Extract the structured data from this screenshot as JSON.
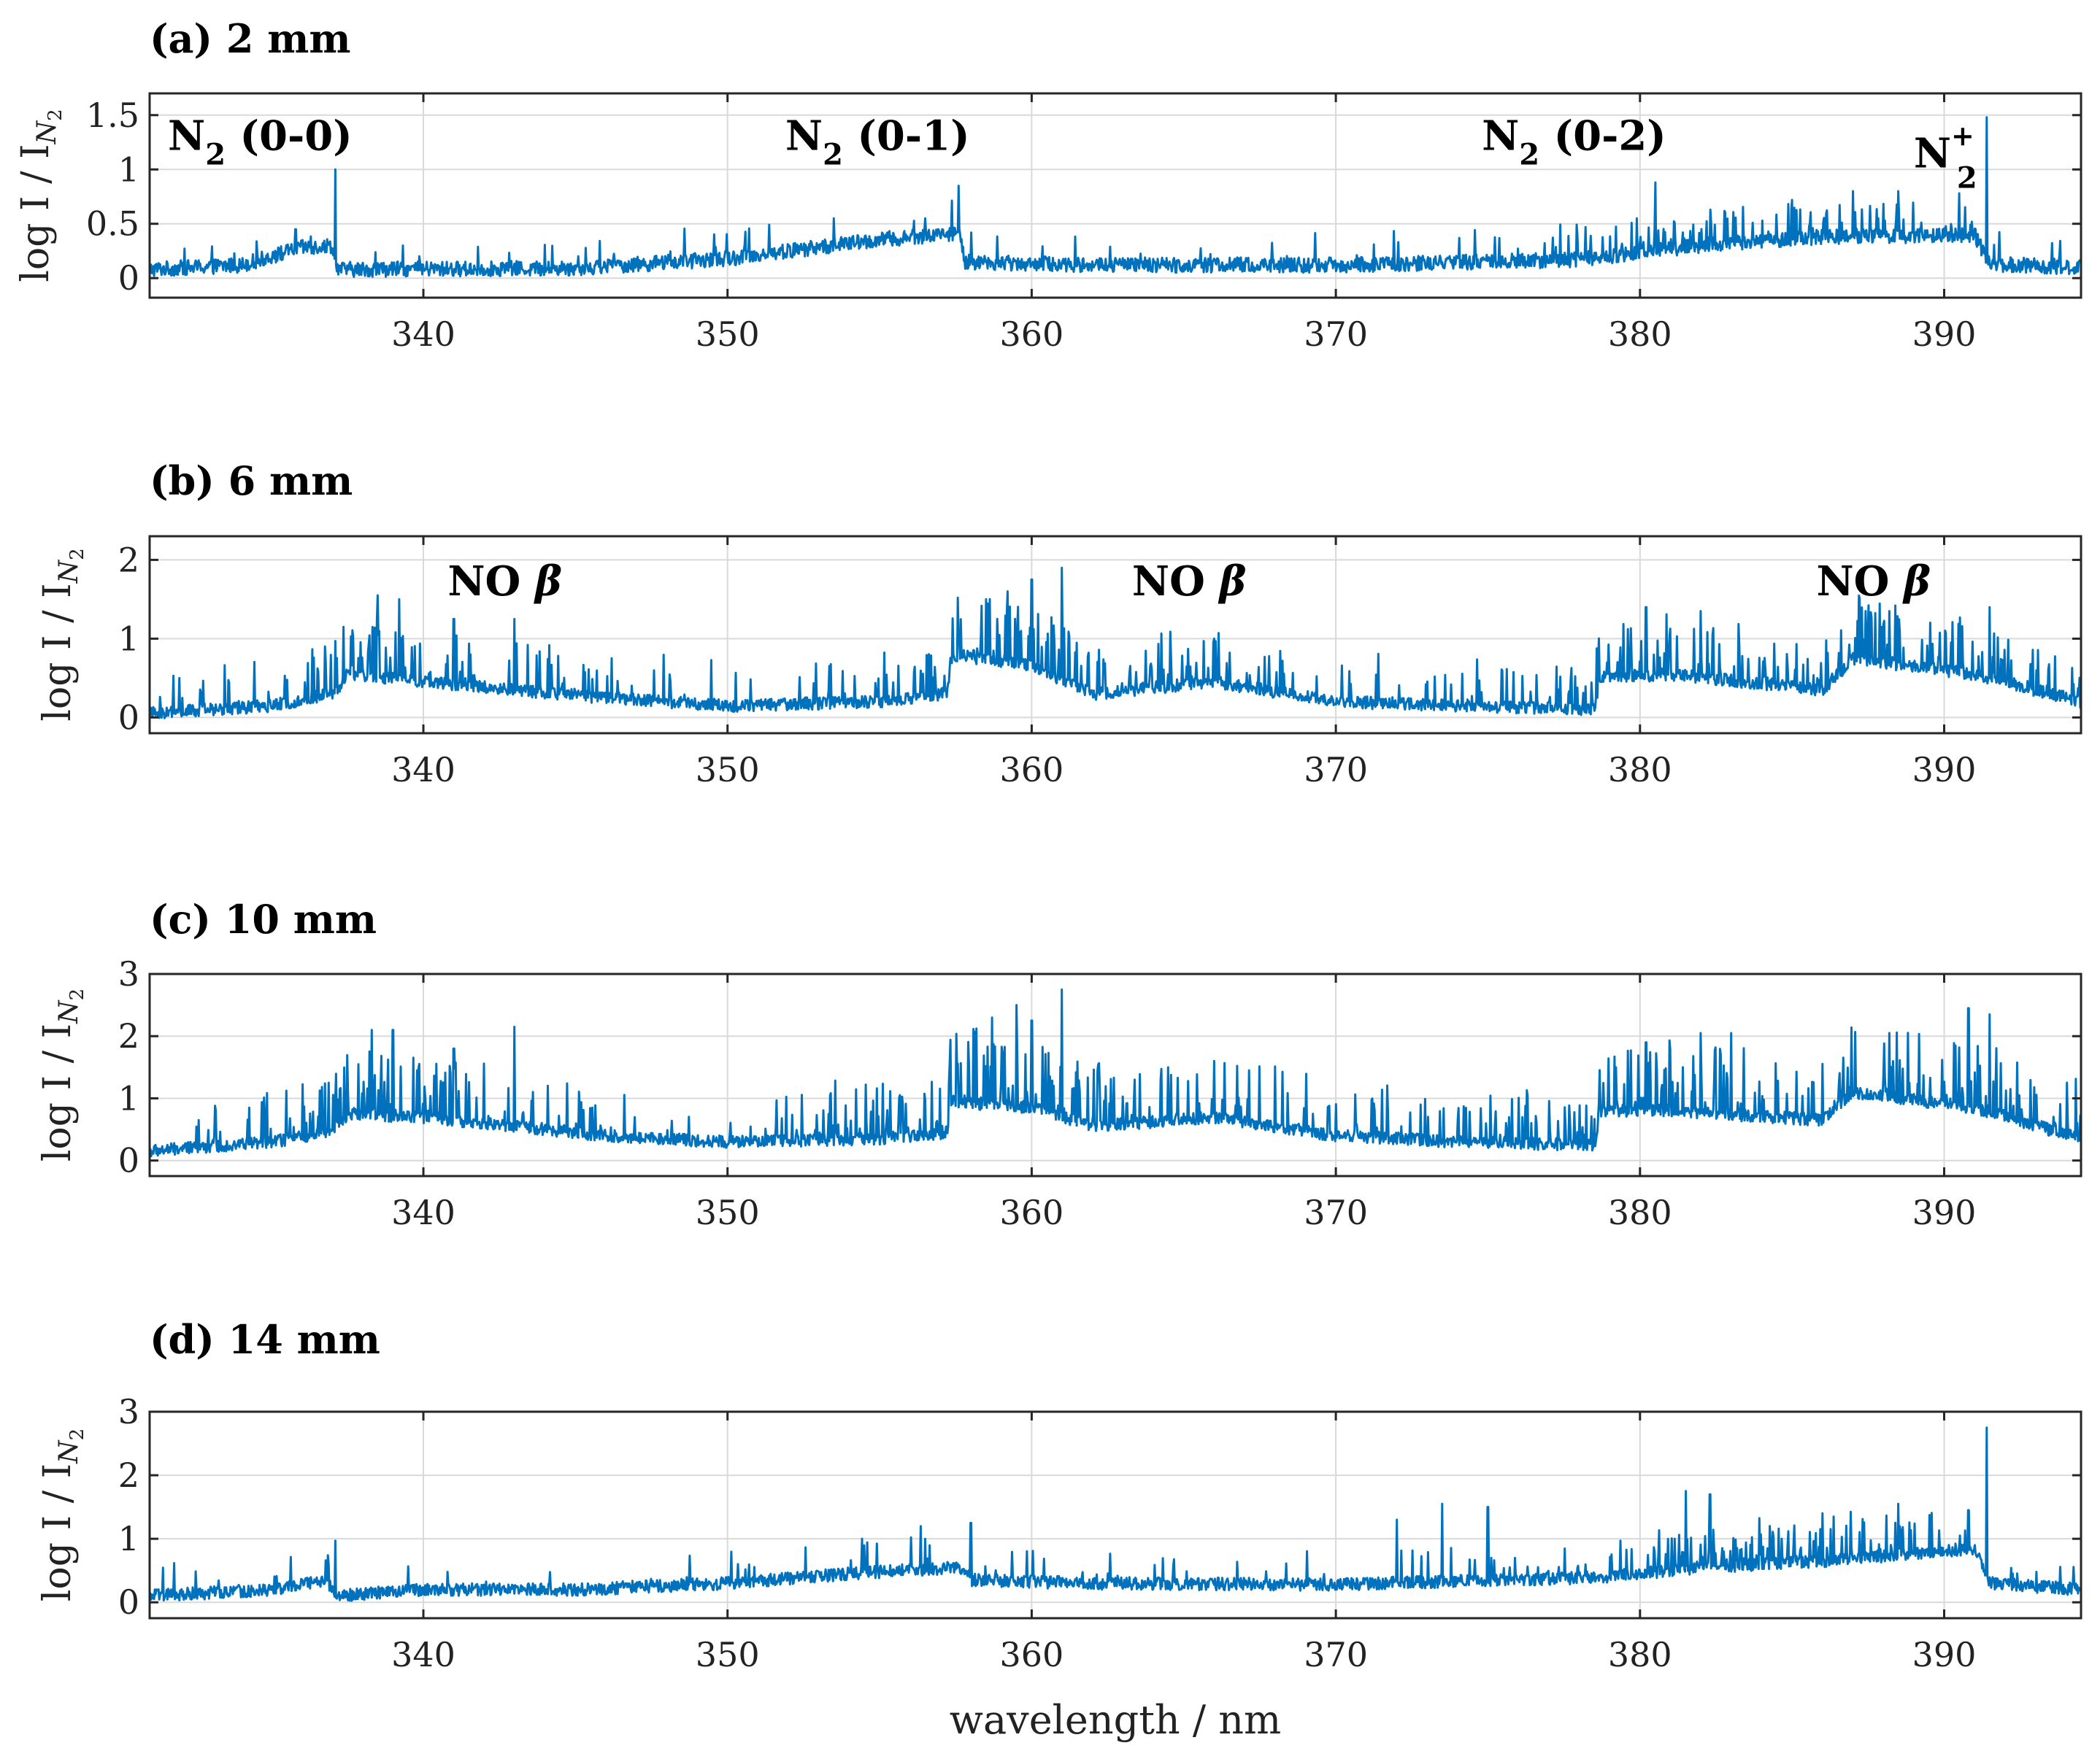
{
  "figure": {
    "xlabel": "wavelength / nm",
    "ylabel": "log I / I",
    "ylabel_sub": "N",
    "ylabel_subsub": "2",
    "line_color": "#0072BD"
  },
  "chart_data": [
    {
      "type": "line",
      "title": "(a) 2 mm",
      "xlabel": "wavelength / nm",
      "ylabel": "log I / I_N2",
      "xlim": [
        331,
        394.5
      ],
      "ylim": [
        -0.18,
        1.7
      ],
      "xticks": [
        340,
        350,
        360,
        370,
        380,
        390
      ],
      "yticks": [
        0,
        0.5,
        1,
        1.5
      ],
      "ytick_labels": [
        "0",
        "0.5",
        "1",
        "1.5"
      ],
      "grid": true,
      "baseline": [
        [
          331,
          0.08
        ],
        [
          334,
          0.12
        ],
        [
          336,
          0.28
        ],
        [
          337,
          0.3
        ],
        [
          337.2,
          0.08
        ],
        [
          345,
          0.09
        ],
        [
          350,
          0.18
        ],
        [
          354,
          0.32
        ],
        [
          357.6,
          0.42
        ],
        [
          357.8,
          0.15
        ],
        [
          362,
          0.12
        ],
        [
          370,
          0.12
        ],
        [
          378,
          0.17
        ],
        [
          382,
          0.3
        ],
        [
          386,
          0.38
        ],
        [
          391,
          0.4
        ],
        [
          391.5,
          0.13
        ],
        [
          394.5,
          0.1
        ]
      ],
      "peaks": [
        [
          337.1,
          1.0
        ],
        [
          335.8,
          0.45
        ],
        [
          353.5,
          0.55
        ],
        [
          356.5,
          0.55
        ],
        [
          357.6,
          0.85
        ],
        [
          379.9,
          0.55
        ],
        [
          380.5,
          0.88
        ],
        [
          385,
          0.72
        ],
        [
          387,
          0.8
        ],
        [
          388.5,
          0.8
        ],
        [
          390.5,
          0.78
        ],
        [
          391.4,
          1.48
        ]
      ],
      "noise": 0.07,
      "spike_density": [
        [
          331,
          0.05
        ],
        [
          375,
          0.1
        ],
        [
          380,
          0.35
        ],
        [
          386,
          0.5
        ],
        [
          391.5,
          0.1
        ],
        [
          394.5,
          0.05
        ]
      ],
      "spike_height": 0.35,
      "annotations": [
        {
          "text": "N",
          "sub": "2",
          "rest": " (0-0)",
          "x": 331.6,
          "y": 1.18
        },
        {
          "text": "N",
          "sub": "2",
          "rest": " (0-1)",
          "x": 351.9,
          "y": 1.18
        },
        {
          "text": "N",
          "sub": "2",
          "rest": " (0-2)",
          "x": 374.8,
          "y": 1.18
        },
        {
          "text": "N",
          "sub": "2",
          "sup": "+",
          "rest": "",
          "x": 389.0,
          "y": 1.02
        }
      ]
    },
    {
      "type": "line",
      "title": "(b) 6 mm",
      "xlabel": "wavelength / nm",
      "ylabel": "log I / I_N2",
      "xlim": [
        331,
        394.5
      ],
      "ylim": [
        -0.2,
        2.3
      ],
      "xticks": [
        340,
        350,
        360,
        370,
        380,
        390
      ],
      "yticks": [
        0,
        1,
        2
      ],
      "ytick_labels": [
        "0",
        "1",
        "2"
      ],
      "grid": true,
      "baseline": [
        [
          331,
          0.05
        ],
        [
          335,
          0.15
        ],
        [
          337,
          0.3
        ],
        [
          337.6,
          0.55
        ],
        [
          340,
          0.45
        ],
        [
          343,
          0.35
        ],
        [
          346,
          0.25
        ],
        [
          350,
          0.15
        ],
        [
          355,
          0.2
        ],
        [
          357.2,
          0.3
        ],
        [
          357.4,
          0.8
        ],
        [
          360,
          0.65
        ],
        [
          362,
          0.3
        ],
        [
          366,
          0.45
        ],
        [
          370,
          0.2
        ],
        [
          374,
          0.15
        ],
        [
          378.5,
          0.1
        ],
        [
          378.7,
          0.5
        ],
        [
          381,
          0.55
        ],
        [
          386,
          0.35
        ],
        [
          387,
          0.75
        ],
        [
          391,
          0.55
        ],
        [
          394.5,
          0.2
        ]
      ],
      "peaks": [
        [
          337.1,
          0.97
        ],
        [
          338.5,
          1.55
        ],
        [
          339.2,
          1.5
        ],
        [
          341,
          1.25
        ],
        [
          343,
          1.25
        ],
        [
          358.5,
          1.5
        ],
        [
          359.2,
          1.6
        ],
        [
          360,
          1.75
        ],
        [
          361,
          1.9
        ],
        [
          366,
          1.0
        ],
        [
          380.2,
          1.4
        ],
        [
          382,
          1.35
        ],
        [
          388.2,
          1.35
        ],
        [
          391.5,
          1.4
        ]
      ],
      "noise": 0.08,
      "spike_density": [
        [
          331,
          0.05
        ],
        [
          337.5,
          0.6
        ],
        [
          344,
          0.3
        ],
        [
          350,
          0.05
        ],
        [
          357.4,
          0.6
        ],
        [
          364,
          0.45
        ],
        [
          372,
          0.2
        ],
        [
          378.7,
          0.55
        ],
        [
          394.5,
          0.5
        ]
      ],
      "spike_height": 0.7,
      "annotations": [
        {
          "text": "NO ",
          "greek": "β",
          "rest": "",
          "x": 340.8,
          "y": 1.55
        },
        {
          "text": "NO ",
          "greek": "β",
          "rest": "",
          "x": 363.3,
          "y": 1.55
        },
        {
          "text": "NO ",
          "greek": "β",
          "rest": "",
          "x": 385.8,
          "y": 1.55
        }
      ]
    },
    {
      "type": "line",
      "title": "(c) 10 mm",
      "xlabel": "wavelength / nm",
      "ylabel": "log I / I_N2",
      "xlim": [
        331,
        394.5
      ],
      "ylim": [
        -0.25,
        3.0
      ],
      "xticks": [
        340,
        350,
        360,
        370,
        380,
        390
      ],
      "yticks": [
        0,
        1,
        2,
        3
      ],
      "ytick_labels": [
        "0",
        "1",
        "2",
        "3"
      ],
      "grid": true,
      "baseline": [
        [
          331,
          0.15
        ],
        [
          335,
          0.3
        ],
        [
          337,
          0.45
        ],
        [
          337.6,
          0.75
        ],
        [
          340,
          0.7
        ],
        [
          343,
          0.55
        ],
        [
          346,
          0.4
        ],
        [
          350,
          0.3
        ],
        [
          355,
          0.35
        ],
        [
          357.2,
          0.45
        ],
        [
          357.4,
          0.95
        ],
        [
          360,
          0.85
        ],
        [
          362,
          0.55
        ],
        [
          366,
          0.7
        ],
        [
          370,
          0.4
        ],
        [
          374,
          0.3
        ],
        [
          378.5,
          0.25
        ],
        [
          378.7,
          0.8
        ],
        [
          381,
          0.8
        ],
        [
          386,
          0.65
        ],
        [
          387,
          1.1
        ],
        [
          391,
          0.85
        ],
        [
          394.5,
          0.35
        ]
      ],
      "peaks": [
        [
          337.1,
          1.0
        ],
        [
          338.3,
          2.1
        ],
        [
          339,
          2.1
        ],
        [
          341,
          1.8
        ],
        [
          343,
          2.15
        ],
        [
          358.7,
          2.3
        ],
        [
          359.5,
          2.5
        ],
        [
          360,
          2.25
        ],
        [
          361,
          2.75
        ],
        [
          366,
          1.6
        ],
        [
          380.2,
          1.9
        ],
        [
          382,
          2.05
        ],
        [
          383,
          2.05
        ],
        [
          388.2,
          2.05
        ],
        [
          390.8,
          2.45
        ],
        [
          391.5,
          2.35
        ]
      ],
      "noise": 0.1,
      "spike_density": [
        [
          331,
          0.05
        ],
        [
          337.5,
          0.6
        ],
        [
          344,
          0.35
        ],
        [
          350,
          0.1
        ],
        [
          357.4,
          0.65
        ],
        [
          364,
          0.5
        ],
        [
          372,
          0.25
        ],
        [
          378.7,
          0.6
        ],
        [
          394.5,
          0.55
        ]
      ],
      "spike_height": 0.95,
      "annotations": []
    },
    {
      "type": "line",
      "title": "(d) 14 mm",
      "xlabel": "wavelength / nm",
      "ylabel": "log I / I_N2",
      "xlim": [
        331,
        394.5
      ],
      "ylim": [
        -0.25,
        3.0
      ],
      "xticks": [
        340,
        350,
        360,
        370,
        380,
        390
      ],
      "yticks": [
        0,
        1,
        2,
        3
      ],
      "ytick_labels": [
        "0",
        "1",
        "2",
        "3"
      ],
      "grid": true,
      "baseline": [
        [
          331,
          0.1
        ],
        [
          335,
          0.2
        ],
        [
          336.8,
          0.35
        ],
        [
          337.2,
          0.1
        ],
        [
          340,
          0.2
        ],
        [
          345,
          0.2
        ],
        [
          350,
          0.3
        ],
        [
          354,
          0.45
        ],
        [
          357.6,
          0.55
        ],
        [
          358,
          0.35
        ],
        [
          362,
          0.3
        ],
        [
          370,
          0.28
        ],
        [
          375,
          0.35
        ],
        [
          379,
          0.4
        ],
        [
          382,
          0.55
        ],
        [
          386,
          0.65
        ],
        [
          391,
          0.85
        ],
        [
          391.5,
          0.3
        ],
        [
          394.5,
          0.2
        ]
      ],
      "peaks": [
        [
          337.1,
          0.97
        ],
        [
          356.5,
          1.0
        ],
        [
          358,
          1.25
        ],
        [
          372,
          1.3
        ],
        [
          373.5,
          1.55
        ],
        [
          375,
          1.5
        ],
        [
          381.5,
          1.75
        ],
        [
          382.3,
          1.7
        ],
        [
          386,
          1.4
        ],
        [
          388.5,
          1.55
        ],
        [
          390.8,
          1.45
        ],
        [
          391.4,
          2.75
        ]
      ],
      "noise": 0.1,
      "spike_density": [
        [
          331,
          0.05
        ],
        [
          370,
          0.1
        ],
        [
          378,
          0.2
        ],
        [
          380,
          0.4
        ],
        [
          386,
          0.55
        ],
        [
          391.5,
          0.1
        ],
        [
          394.5,
          0.05
        ]
      ],
      "spike_height": 0.6,
      "annotations": []
    }
  ]
}
